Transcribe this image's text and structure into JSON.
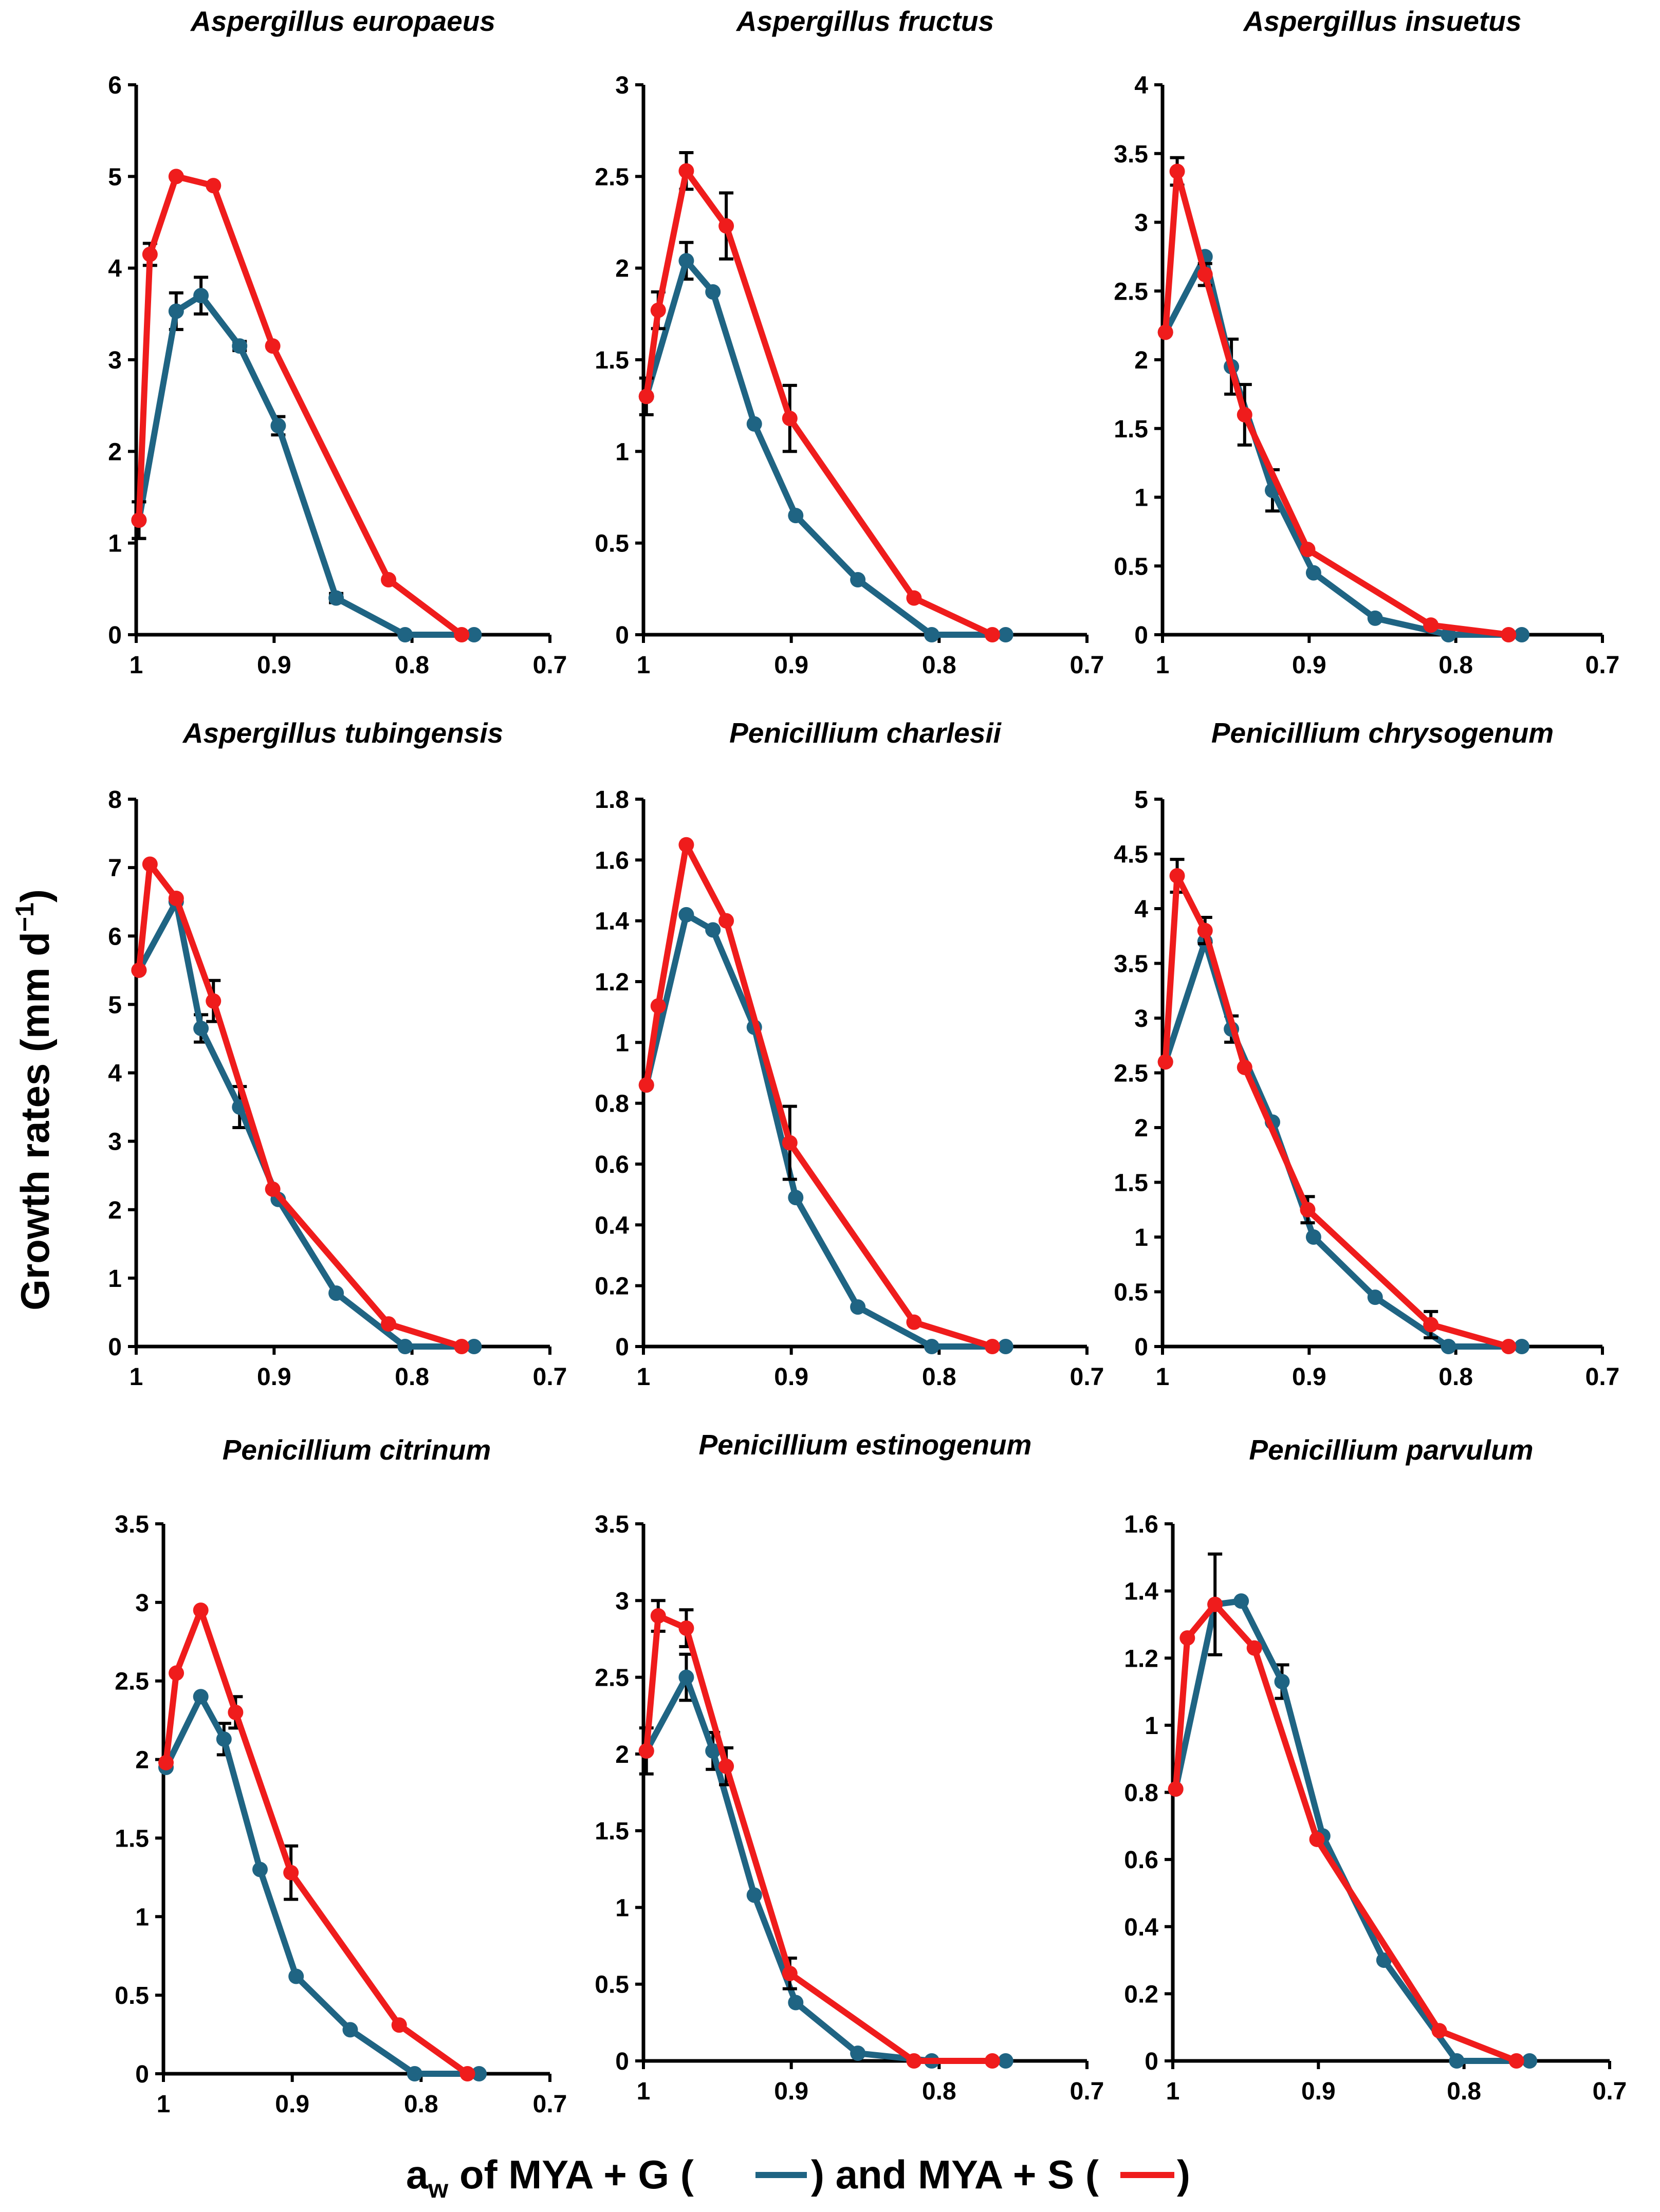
{
  "figure": {
    "ylabel": "Growth rates (mm d",
    "ylabel_sup": "−1",
    "ylabel_close": ")",
    "xlabel_a": "a",
    "xlabel_sub": "w",
    "xlabel_mid": " of MYA + G (",
    "xlabel_and": ") and MYA + S (",
    "xlabel_end": ")",
    "colors": {
      "glycerol": "#1f6483",
      "sorbitol": "#ef1c1c",
      "axis": "#000000",
      "errorbar": "#000000"
    },
    "series_names": [
      "MYA + G",
      "MYA + S"
    ]
  },
  "chart_data": [
    {
      "type": "line",
      "title": "Aspergillus europaeus",
      "xlim": [
        1.0,
        0.7
      ],
      "xticks": [
        "1",
        "0.9",
        "0.8",
        "0.7"
      ],
      "xtick_values": [
        1.0,
        0.9,
        0.8,
        0.7
      ],
      "ylim": [
        0,
        6
      ],
      "yticks": [
        "0",
        "1",
        "2",
        "3",
        "4",
        "5",
        "6"
      ],
      "ytick_values": [
        0,
        1,
        2,
        3,
        4,
        5,
        6
      ],
      "series": [
        {
          "name": "MYA + G",
          "x": [
            0.998,
            0.971,
            0.953,
            0.925,
            0.897,
            0.855,
            0.805,
            0.755
          ],
          "y": [
            1.25,
            3.53,
            3.7,
            3.15,
            2.28,
            0.4,
            0.0,
            0.0
          ],
          "err": [
            0.2,
            0.2,
            0.2,
            0.05,
            0.1,
            0.05,
            0.0,
            0.0
          ]
        },
        {
          "name": "MYA + S",
          "x": [
            0.998,
            0.99,
            0.971,
            0.944,
            0.901,
            0.817,
            0.764
          ],
          "y": [
            1.25,
            4.15,
            5.0,
            4.9,
            3.15,
            0.6,
            0.0
          ],
          "err": [
            0.2,
            0.12,
            0.0,
            0.0,
            0.0,
            0.0,
            0.0
          ]
        }
      ]
    },
    {
      "type": "line",
      "title": "Aspergillus fructus",
      "xlim": [
        1.0,
        0.7
      ],
      "xticks": [
        "1",
        "0.9",
        "0.8",
        "0.7"
      ],
      "xtick_values": [
        1.0,
        0.9,
        0.8,
        0.7
      ],
      "ylim": [
        0,
        3
      ],
      "yticks": [
        "0",
        "0.5",
        "1",
        "1.5",
        "2",
        "2.5",
        "3"
      ],
      "ytick_values": [
        0,
        0.5,
        1,
        1.5,
        2,
        2.5,
        3
      ],
      "series": [
        {
          "name": "MYA + G",
          "x": [
            0.998,
            0.971,
            0.953,
            0.925,
            0.897,
            0.855,
            0.805,
            0.755
          ],
          "y": [
            1.3,
            2.04,
            1.87,
            1.15,
            0.65,
            0.3,
            0.0,
            0.0
          ],
          "err": [
            0.0,
            0.1,
            0.0,
            0.0,
            0.0,
            0.0,
            0.0,
            0.0
          ]
        },
        {
          "name": "MYA + S",
          "x": [
            0.998,
            0.99,
            0.971,
            0.944,
            0.901,
            0.817,
            0.764
          ],
          "y": [
            1.3,
            1.77,
            2.53,
            2.23,
            1.18,
            0.2,
            0.0
          ],
          "err": [
            0.1,
            0.1,
            0.1,
            0.18,
            0.18,
            0.0,
            0.0
          ]
        }
      ]
    },
    {
      "type": "line",
      "title": "Aspergillus insuetus",
      "xlim": [
        1.0,
        0.7
      ],
      "xticks": [
        "1",
        "0.9",
        "0.8",
        "0.7"
      ],
      "xtick_values": [
        1.0,
        0.9,
        0.8,
        0.7
      ],
      "ylim": [
        0,
        4
      ],
      "yticks": [
        "0",
        "0.5",
        "1",
        "1.5",
        "2",
        "2.5",
        "3",
        "3.5",
        "4"
      ],
      "ytick_values": [
        0,
        0.5,
        1,
        1.5,
        2,
        2.5,
        3,
        3.5,
        4
      ],
      "series": [
        {
          "name": "MYA + G",
          "x": [
            0.998,
            0.971,
            0.953,
            0.925,
            0.897,
            0.855,
            0.805,
            0.755
          ],
          "y": [
            2.2,
            2.75,
            1.95,
            1.05,
            0.45,
            0.12,
            0.0,
            0.0
          ],
          "err": [
            0.0,
            0.0,
            0.2,
            0.15,
            0.0,
            0.0,
            0.0,
            0.0
          ]
        },
        {
          "name": "MYA + S",
          "x": [
            0.998,
            0.99,
            0.971,
            0.944,
            0.901,
            0.817,
            0.764
          ],
          "y": [
            2.2,
            3.37,
            2.62,
            1.6,
            0.62,
            0.07,
            0.0
          ],
          "err": [
            0.0,
            0.1,
            0.08,
            0.22,
            0.0,
            0.0,
            0.0
          ]
        }
      ]
    },
    {
      "type": "line",
      "title": "Aspergillus tubingensis",
      "xlim": [
        1.0,
        0.7
      ],
      "xticks": [
        "1",
        "0.9",
        "0.8",
        "0.7"
      ],
      "xtick_values": [
        1.0,
        0.9,
        0.8,
        0.7
      ],
      "ylim": [
        0,
        8
      ],
      "yticks": [
        "0",
        "1",
        "2",
        "3",
        "4",
        "5",
        "6",
        "7",
        "8"
      ],
      "ytick_values": [
        0,
        1,
        2,
        3,
        4,
        5,
        6,
        7,
        8
      ],
      "series": [
        {
          "name": "MYA + G",
          "x": [
            0.998,
            0.971,
            0.953,
            0.925,
            0.897,
            0.855,
            0.805,
            0.755
          ],
          "y": [
            5.5,
            6.5,
            4.65,
            3.5,
            2.15,
            0.78,
            0.0,
            0.0
          ],
          "err": [
            0.0,
            0.0,
            0.2,
            0.3,
            0.0,
            0.0,
            0.0,
            0.0
          ]
        },
        {
          "name": "MYA + S",
          "x": [
            0.998,
            0.99,
            0.971,
            0.944,
            0.901,
            0.817,
            0.764
          ],
          "y": [
            5.5,
            7.05,
            6.55,
            5.05,
            2.3,
            0.33,
            0.0
          ],
          "err": [
            0.0,
            0.0,
            0.0,
            0.3,
            0.0,
            0.0,
            0.0
          ]
        }
      ]
    },
    {
      "type": "line",
      "title": "Penicillium charlesii",
      "xlim": [
        1.0,
        0.7
      ],
      "xticks": [
        "1",
        "0.9",
        "0.8",
        "0.7"
      ],
      "xtick_values": [
        1.0,
        0.9,
        0.8,
        0.7
      ],
      "ylim": [
        0,
        1.8
      ],
      "yticks": [
        "0",
        "0.2",
        "0.4",
        "0.6",
        "0.8",
        "1",
        "1.2",
        "1.4",
        "1.6",
        "1.8"
      ],
      "ytick_values": [
        0,
        0.2,
        0.4,
        0.6,
        0.8,
        1,
        1.2,
        1.4,
        1.6,
        1.8
      ],
      "series": [
        {
          "name": "MYA + G",
          "x": [
            0.998,
            0.971,
            0.953,
            0.925,
            0.897,
            0.855,
            0.805,
            0.755
          ],
          "y": [
            0.86,
            1.42,
            1.37,
            1.05,
            0.49,
            0.13,
            0.0,
            0.0
          ],
          "err": [
            0.0,
            0.0,
            0.0,
            0.0,
            0.0,
            0.0,
            0.0,
            0.0
          ]
        },
        {
          "name": "MYA + S",
          "x": [
            0.998,
            0.99,
            0.971,
            0.944,
            0.901,
            0.817,
            0.764
          ],
          "y": [
            0.86,
            1.12,
            1.65,
            1.4,
            0.67,
            0.08,
            0.0
          ],
          "err": [
            0.0,
            0.0,
            0.0,
            0.0,
            0.12,
            0.0,
            0.0
          ]
        }
      ]
    },
    {
      "type": "line",
      "title": "Penicillium chrysogenum",
      "xlim": [
        1.0,
        0.7
      ],
      "xticks": [
        "1",
        "0.9",
        "0.8",
        "0.7"
      ],
      "xtick_values": [
        1.0,
        0.9,
        0.8,
        0.7
      ],
      "ylim": [
        0,
        5
      ],
      "yticks": [
        "0",
        "0.5",
        "1",
        "1.5",
        "2",
        "2.5",
        "3",
        "3.5",
        "4",
        "4.5",
        "5"
      ],
      "ytick_values": [
        0,
        0.5,
        1,
        1.5,
        2,
        2.5,
        3,
        3.5,
        4,
        4.5,
        5
      ],
      "series": [
        {
          "name": "MYA + G",
          "x": [
            0.998,
            0.971,
            0.953,
            0.925,
            0.897,
            0.855,
            0.805,
            0.755
          ],
          "y": [
            2.6,
            3.7,
            2.9,
            2.05,
            1.0,
            0.45,
            0.0,
            0.0
          ],
          "err": [
            0.0,
            0.0,
            0.12,
            0.0,
            0.0,
            0.0,
            0.0,
            0.0
          ]
        },
        {
          "name": "MYA + S",
          "x": [
            0.998,
            0.99,
            0.971,
            0.944,
            0.901,
            0.817,
            0.764
          ],
          "y": [
            2.6,
            4.3,
            3.8,
            2.55,
            1.25,
            0.2,
            0.0
          ],
          "err": [
            0.0,
            0.15,
            0.12,
            0.0,
            0.12,
            0.12,
            0.0
          ]
        }
      ]
    },
    {
      "type": "line",
      "title": "Penicillium citrinum",
      "xlim": [
        1.0,
        0.7
      ],
      "xticks": [
        "1",
        "0.9",
        "0.8",
        "0.7"
      ],
      "xtick_values": [
        1.0,
        0.9,
        0.8,
        0.7
      ],
      "ylim": [
        0,
        3.5
      ],
      "yticks": [
        "0",
        "0.5",
        "1",
        "1.5",
        "2",
        "2.5",
        "3",
        "3.5"
      ],
      "ytick_values": [
        0,
        0.5,
        1,
        1.5,
        2,
        2.5,
        3,
        3.5
      ],
      "series": [
        {
          "name": "MYA + G",
          "x": [
            0.998,
            0.971,
            0.953,
            0.925,
            0.897,
            0.855,
            0.805,
            0.755
          ],
          "y": [
            1.95,
            2.4,
            2.13,
            1.3,
            0.62,
            0.28,
            0.0,
            0.0
          ],
          "err": [
            0.0,
            0.0,
            0.1,
            0.0,
            0.0,
            0.0,
            0.0,
            0.0
          ]
        },
        {
          "name": "MYA + S",
          "x": [
            0.998,
            0.99,
            0.971,
            0.944,
            0.901,
            0.817,
            0.764
          ],
          "y": [
            1.98,
            2.55,
            2.95,
            2.3,
            1.28,
            0.31,
            0.0
          ],
          "err": [
            0.0,
            0.0,
            0.0,
            0.1,
            0.17,
            0.0,
            0.0
          ]
        }
      ]
    },
    {
      "type": "line",
      "title": "Penicillium estinogenum",
      "xlim": [
        1.0,
        0.7
      ],
      "xticks": [
        "1",
        "0.9",
        "0.8",
        "0.7"
      ],
      "xtick_values": [
        1.0,
        0.9,
        0.8,
        0.7
      ],
      "ylim": [
        0,
        3.5
      ],
      "yticks": [
        "0",
        "0.5",
        "1",
        "1.5",
        "2",
        "2.5",
        "3",
        "3.5"
      ],
      "ytick_values": [
        0,
        0.5,
        1,
        1.5,
        2,
        2.5,
        3,
        3.5
      ],
      "series": [
        {
          "name": "MYA + G",
          "x": [
            0.998,
            0.971,
            0.953,
            0.925,
            0.897,
            0.855,
            0.805,
            0.755
          ],
          "y": [
            2.02,
            2.5,
            2.02,
            1.08,
            0.38,
            0.05,
            0.0,
            0.0
          ],
          "err": [
            0.15,
            0.15,
            0.12,
            0.0,
            0.0,
            0.0,
            0.0,
            0.0
          ]
        },
        {
          "name": "MYA + S",
          "x": [
            0.998,
            0.99,
            0.971,
            0.944,
            0.901,
            0.817,
            0.764
          ],
          "y": [
            2.02,
            2.9,
            2.82,
            1.92,
            0.57,
            0.0,
            0.0
          ],
          "err": [
            0.0,
            0.1,
            0.12,
            0.12,
            0.1,
            0.0,
            0.0
          ]
        }
      ]
    },
    {
      "type": "line",
      "title": "Penicillium parvulum",
      "xlim": [
        1.0,
        0.7
      ],
      "xticks": [
        "1",
        "0.9",
        "0.8",
        "0.7"
      ],
      "xtick_values": [
        1.0,
        0.9,
        0.8,
        0.7
      ],
      "ylim": [
        0,
        1.6
      ],
      "yticks": [
        "0",
        "0.2",
        "0.4",
        "0.6",
        "0.8",
        "1",
        "1.2",
        "1.4",
        "1.6"
      ],
      "ytick_values": [
        0,
        0.2,
        0.4,
        0.6,
        0.8,
        1,
        1.2,
        1.4,
        1.6
      ],
      "series": [
        {
          "name": "MYA + G",
          "x": [
            0.998,
            0.971,
            0.953,
            0.925,
            0.897,
            0.855,
            0.805,
            0.755
          ],
          "y": [
            0.81,
            1.36,
            1.37,
            1.13,
            0.67,
            0.3,
            0.0,
            0.0
          ],
          "err": [
            0.0,
            0.0,
            0.0,
            0.05,
            0.0,
            0.0,
            0.0,
            0.0
          ]
        },
        {
          "name": "MYA + S",
          "x": [
            0.998,
            0.99,
            0.971,
            0.944,
            0.901,
            0.817,
            0.764
          ],
          "y": [
            0.81,
            1.26,
            1.36,
            1.23,
            0.66,
            0.09,
            0.0
          ],
          "err": [
            0.0,
            0.0,
            0.15,
            0.0,
            0.0,
            0.0,
            0.0
          ]
        }
      ]
    }
  ]
}
